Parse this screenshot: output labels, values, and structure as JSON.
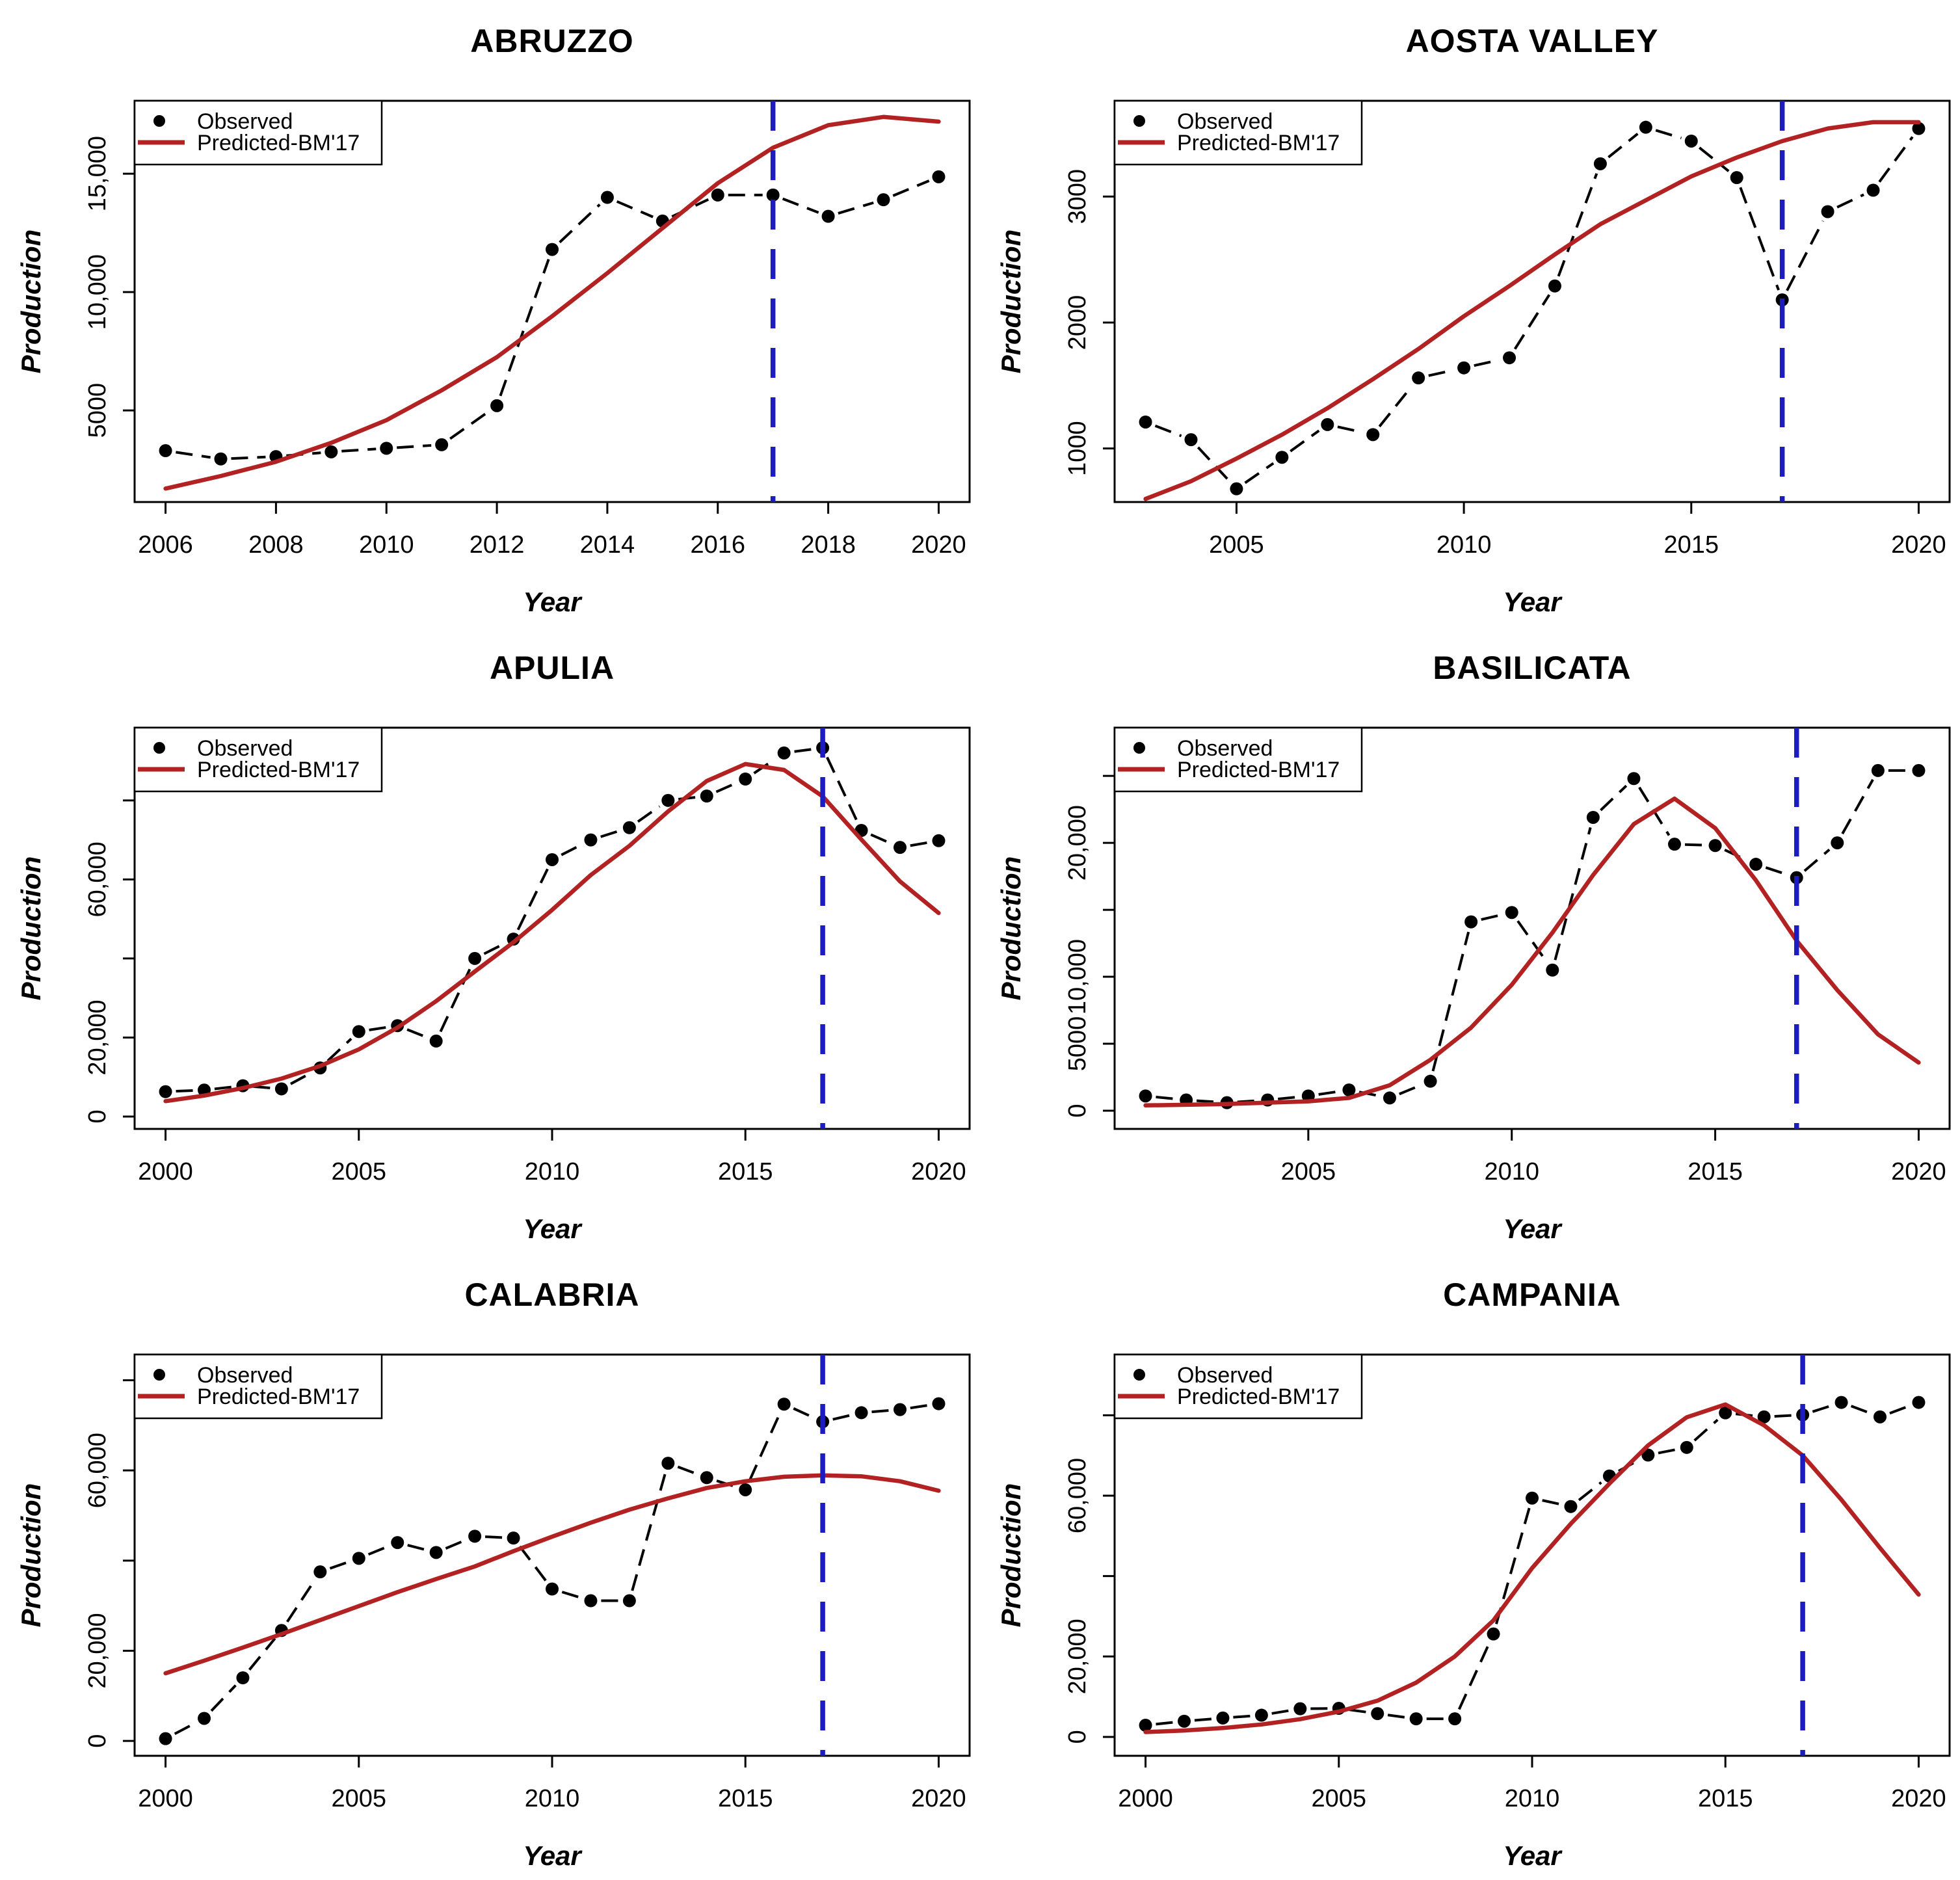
{
  "figure": {
    "x_axis_label": "Year",
    "y_axis_label": "Production",
    "legend": {
      "observed_label": "Observed",
      "predicted_label": "Predicted-BM'17"
    },
    "colors": {
      "observed": "#000000",
      "predicted": "#B22222",
      "cutoff_line": "#1C1CC0",
      "plot_border": "#000000",
      "background": "#FFFFFF",
      "text": "#000000"
    },
    "marker": "filled-circle-icon",
    "cutoff_year": 2017
  },
  "chart_data": [
    {
      "type": "line",
      "title": "ABRUZZO",
      "xlabel": "Year",
      "ylabel": "Production",
      "years": [
        2006,
        2007,
        2008,
        2009,
        2010,
        2011,
        2012,
        2013,
        2014,
        2015,
        2016,
        2017,
        2018,
        2019,
        2020
      ],
      "series": [
        {
          "name": "Observed",
          "values": [
            3300,
            2950,
            3050,
            3250,
            3400,
            3550,
            5200,
            11800,
            14000,
            13000,
            14100,
            14100,
            13200,
            13900,
            14870
          ]
        },
        {
          "name": "Predicted-BM'17",
          "values": [
            1700,
            2230,
            2830,
            3630,
            4590,
            5850,
            7250,
            8980,
            10800,
            12700,
            14600,
            16100,
            17050,
            17400,
            17200
          ]
        }
      ],
      "xlim": [
        2005.44,
        2020.56
      ],
      "ylim": [
        1130,
        18080
      ],
      "x_ticks": [
        2006,
        2008,
        2010,
        2012,
        2014,
        2016,
        2018,
        2020
      ],
      "y_ticks": [
        {
          "value": 5000,
          "label": "5000"
        },
        {
          "value": 10000,
          "label": "10,000"
        },
        {
          "value": 15000,
          "label": "15,000"
        }
      ],
      "vline_year": 2017,
      "grid": "off",
      "legend_position": "topleft"
    },
    {
      "type": "line",
      "title": "AOSTA VALLEY",
      "xlabel": "Year",
      "ylabel": "Production",
      "years": [
        2003,
        2004,
        2005,
        2006,
        2007,
        2008,
        2009,
        2010,
        2011,
        2012,
        2013,
        2014,
        2015,
        2016,
        2017,
        2018,
        2019,
        2020
      ],
      "series": [
        {
          "name": "Observed",
          "values": [
            1210,
            1070,
            680,
            930,
            1190,
            1110,
            1560,
            1640,
            1720,
            2290,
            3260,
            3550,
            3440,
            3150,
            2180,
            2880,
            3050,
            3540
          ]
        },
        {
          "name": "Predicted-BM'17",
          "values": [
            600,
            740,
            920,
            1110,
            1320,
            1550,
            1790,
            2050,
            2290,
            2540,
            2780,
            2970,
            3160,
            3310,
            3440,
            3540,
            3590,
            3590
          ]
        }
      ],
      "xlim": [
        2002.32,
        2020.68
      ],
      "ylim": [
        575,
        3760
      ],
      "x_ticks": [
        2005,
        2010,
        2015,
        2020
      ],
      "y_ticks": [
        {
          "value": 1000,
          "label": "1000"
        },
        {
          "value": 2000,
          "label": "2000"
        },
        {
          "value": 3000,
          "label": "3000"
        }
      ],
      "vline_year": 2017,
      "grid": "off",
      "legend_position": "topleft"
    },
    {
      "type": "line",
      "title": "APULIA",
      "xlabel": "Year",
      "ylabel": "Production",
      "years": [
        2000,
        2001,
        2002,
        2003,
        2004,
        2005,
        2006,
        2007,
        2008,
        2009,
        2010,
        2011,
        2012,
        2013,
        2014,
        2015,
        2016,
        2017,
        2018,
        2019,
        2020
      ],
      "series": [
        {
          "name": "Observed",
          "values": [
            6300,
            6700,
            7800,
            7000,
            12300,
            21500,
            23000,
            19100,
            40000,
            44900,
            65000,
            70000,
            73100,
            80000,
            81100,
            85400,
            92000,
            93300,
            72400,
            68100,
            69800
          ]
        },
        {
          "name": "Predicted-BM'17",
          "values": [
            3900,
            5300,
            7200,
            9600,
            12800,
            17000,
            22500,
            29200,
            36700,
            44100,
            52300,
            61100,
            68500,
            77200,
            84900,
            89200,
            87700,
            81000,
            70100,
            59500,
            51500
          ]
        }
      ],
      "xlim": [
        1999.2,
        2020.8
      ],
      "ylim": [
        -3130,
        98400
      ],
      "x_ticks": [
        2000,
        2005,
        2010,
        2015,
        2020
      ],
      "y_ticks": [
        {
          "value": 0,
          "label": "0"
        },
        {
          "value": 20000,
          "label": "20,000"
        },
        {
          "value": 40000,
          "label": null
        },
        {
          "value": 60000,
          "label": "60,000"
        },
        {
          "value": 80000,
          "label": null
        }
      ],
      "vline_year": 2017,
      "grid": "off",
      "legend_position": "topleft"
    },
    {
      "type": "line",
      "title": "BASILICATA",
      "xlabel": "Year",
      "ylabel": "Production",
      "years": [
        2001,
        2002,
        2003,
        2004,
        2005,
        2006,
        2007,
        2008,
        2009,
        2010,
        2011,
        2012,
        2013,
        2014,
        2015,
        2016,
        2017,
        2018,
        2019,
        2020
      ],
      "series": [
        {
          "name": "Observed",
          "values": [
            1100,
            800,
            600,
            800,
            1100,
            1550,
            950,
            2200,
            14100,
            14800,
            10500,
            21900,
            24800,
            19900,
            19800,
            18400,
            17400,
            20000,
            25400,
            25400
          ]
        },
        {
          "name": "Predicted-BM'17",
          "values": [
            400,
            440,
            500,
            600,
            700,
            950,
            1900,
            3800,
            6200,
            9400,
            13300,
            17600,
            21400,
            23300,
            21100,
            17200,
            12700,
            9000,
            5700,
            3600
          ]
        }
      ],
      "xlim": [
        2000.24,
        2020.76
      ],
      "ylim": [
        -1360,
        28600
      ],
      "x_ticks": [
        2005,
        2010,
        2015,
        2020
      ],
      "y_ticks": [
        {
          "value": 0,
          "label": "0"
        },
        {
          "value": 5000,
          "label": "5000"
        },
        {
          "value": 10000,
          "label": "10,000"
        },
        {
          "value": 15000,
          "label": null
        },
        {
          "value": 20000,
          "label": "20,000"
        },
        {
          "value": 25000,
          "label": null
        }
      ],
      "vline_year": 2017,
      "grid": "off",
      "legend_position": "topleft"
    },
    {
      "type": "line",
      "title": "CALABRIA",
      "xlabel": "Year",
      "ylabel": "Production",
      "years": [
        2000,
        2001,
        2002,
        2003,
        2004,
        2005,
        2006,
        2007,
        2008,
        2009,
        2010,
        2011,
        2012,
        2013,
        2014,
        2015,
        2016,
        2017,
        2018,
        2019,
        2020
      ],
      "series": [
        {
          "name": "Observed",
          "values": [
            500,
            5000,
            14000,
            24500,
            37500,
            40500,
            44000,
            41800,
            45400,
            45000,
            33700,
            31100,
            31100,
            61600,
            58400,
            55700,
            74700,
            70800,
            72800,
            73500,
            74800
          ]
        },
        {
          "name": "Predicted-BM'17",
          "values": [
            15000,
            17800,
            20700,
            23700,
            26800,
            29900,
            33000,
            35900,
            38700,
            42100,
            45300,
            48400,
            51300,
            53800,
            56100,
            57600,
            58600,
            58900,
            58700,
            57600,
            55500
          ]
        }
      ],
      "xlim": [
        1999.2,
        2020.8
      ],
      "ylim": [
        -3300,
        85700
      ],
      "x_ticks": [
        2000,
        2005,
        2010,
        2015,
        2020
      ],
      "y_ticks": [
        {
          "value": 0,
          "label": "0"
        },
        {
          "value": 20000,
          "label": "20,000"
        },
        {
          "value": 40000,
          "label": null
        },
        {
          "value": 60000,
          "label": "60,000"
        },
        {
          "value": 80000,
          "label": null
        }
      ],
      "vline_year": 2017,
      "grid": "off",
      "legend_position": "topleft"
    },
    {
      "type": "line",
      "title": "CAMPANIA",
      "xlabel": "Year",
      "ylabel": "Production",
      "years": [
        2000,
        2001,
        2002,
        2003,
        2004,
        2005,
        2006,
        2007,
        2008,
        2009,
        2010,
        2011,
        2012,
        2013,
        2014,
        2015,
        2016,
        2017,
        2018,
        2019,
        2020
      ],
      "series": [
        {
          "name": "Observed",
          "values": [
            2900,
            3900,
            4700,
            5400,
            7000,
            7100,
            5800,
            4500,
            4500,
            25600,
            59400,
            57300,
            64900,
            70100,
            72000,
            80600,
            79600,
            80100,
            83200,
            79600,
            83200
          ]
        },
        {
          "name": "Predicted-BM'17",
          "values": [
            1200,
            1600,
            2200,
            3100,
            4400,
            6300,
            9000,
            13500,
            20000,
            29000,
            42000,
            53000,
            63000,
            72500,
            79500,
            82700,
            77500,
            70000,
            59000,
            47000,
            35400
          ]
        }
      ],
      "xlim": [
        1999.2,
        2020.8
      ],
      "ylim": [
        -4700,
        95100
      ],
      "x_ticks": [
        2000,
        2005,
        2010,
        2015,
        2020
      ],
      "y_ticks": [
        {
          "value": 0,
          "label": "0"
        },
        {
          "value": 20000,
          "label": "20,000"
        },
        {
          "value": 40000,
          "label": null
        },
        {
          "value": 60000,
          "label": "60,000"
        },
        {
          "value": 80000,
          "label": null
        }
      ],
      "vline_year": 2017,
      "grid": "off",
      "legend_position": "topleft"
    }
  ]
}
